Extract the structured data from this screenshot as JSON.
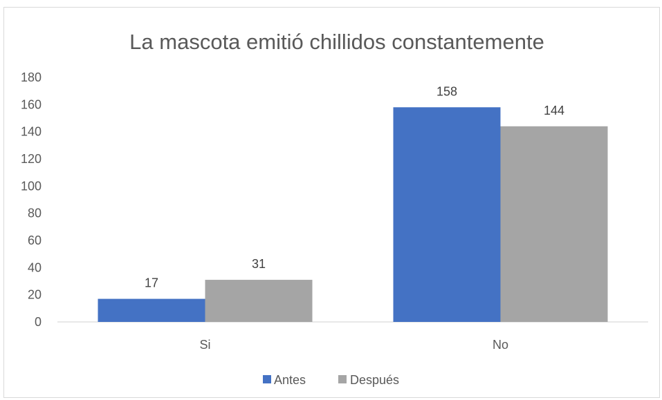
{
  "chart_data": {
    "type": "bar",
    "title": "La mascota emitió chillidos constantemente",
    "categories": [
      "Si",
      "No"
    ],
    "series": [
      {
        "name": "Antes",
        "values": [
          17,
          158
        ],
        "color": "#4472c4"
      },
      {
        "name": "Después",
        "values": [
          31,
          144
        ],
        "color": "#a5a5a5"
      }
    ],
    "ylim": [
      0,
      180
    ],
    "yticks": [
      0,
      20,
      40,
      60,
      80,
      100,
      120,
      140,
      160,
      180
    ],
    "grid": false,
    "legend_position": "bottom",
    "data_labels": true
  }
}
